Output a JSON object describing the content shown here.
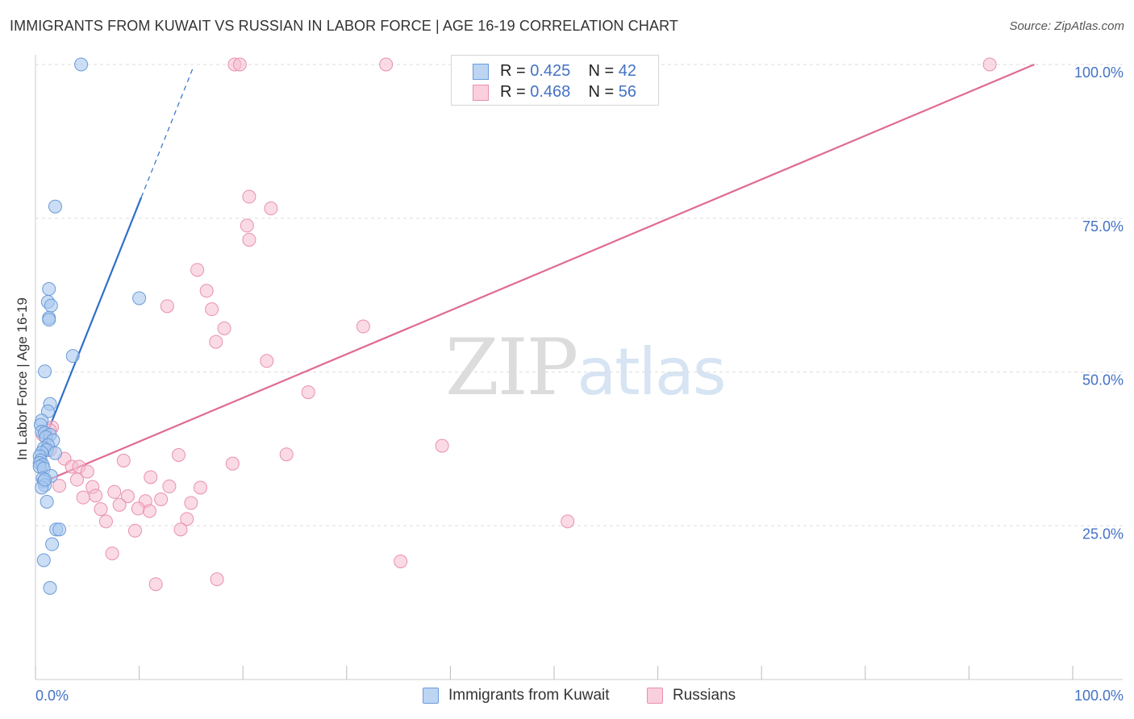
{
  "header": {
    "title": "IMMIGRANTS FROM KUWAIT VS RUSSIAN IN LABOR FORCE | AGE 16-19 CORRELATION CHART",
    "source": "Source: ZipAtlas.com"
  },
  "watermark": {
    "zip": "ZIP",
    "atlas": "atlas"
  },
  "legend": {
    "rows": [
      {
        "r_label": "R = ",
        "r_value": "0.425",
        "n_label": "N = ",
        "n_value": "42"
      },
      {
        "r_label": "R = ",
        "r_value": "0.468",
        "n_label": "N = ",
        "n_value": "56"
      }
    ]
  },
  "bottom_legend": {
    "items": [
      {
        "label": "Immigrants from Kuwait"
      },
      {
        "label": "Russians"
      }
    ]
  },
  "chart_data": {
    "type": "scatter",
    "title": "IMMIGRANTS FROM KUWAIT VS RUSSIAN IN LABOR FORCE | AGE 16-19 CORRELATION CHART",
    "xlabel": "",
    "ylabel": "In Labor Force | Age 16-19",
    "xlim": [
      0,
      100
    ],
    "ylim": [
      0,
      100
    ],
    "x_tick_labels": [
      "0.0%",
      "100.0%"
    ],
    "y_tick_labels": [
      "25.0%",
      "50.0%",
      "75.0%",
      "100.0%"
    ],
    "y_ticks": [
      25,
      50,
      75,
      100
    ],
    "grid": true,
    "legend_position": "top-center",
    "colors": {
      "kuwait_fill": "#a9c8ee",
      "kuwait_stroke": "#6a9bd8",
      "kuwait_line": "#2f6fc8",
      "russians_fill": "#f6bdd0",
      "russians_stroke": "#e98fae",
      "russians_line": "#e06a92",
      "tick_label": "#4472c4",
      "grid": "#dddddd"
    },
    "series": [
      {
        "name": "Immigrants from Kuwait",
        "points": [
          [
            4.4,
            100
          ],
          [
            1.9,
            76.9
          ],
          [
            10,
            62
          ],
          [
            1.3,
            63.5
          ],
          [
            1.2,
            61.4
          ],
          [
            1.5,
            60.8
          ],
          [
            1.3,
            58.8
          ],
          [
            1.3,
            58.5
          ],
          [
            3.6,
            52.6
          ],
          [
            0.9,
            50.1
          ],
          [
            1.4,
            44.8
          ],
          [
            1.2,
            43.6
          ],
          [
            0.6,
            42.1
          ],
          [
            0.5,
            41.4
          ],
          [
            0.6,
            40.3
          ],
          [
            0.9,
            40.1
          ],
          [
            1.4,
            39.8
          ],
          [
            1.0,
            39.4
          ],
          [
            1.7,
            38.9
          ],
          [
            1.2,
            38.1
          ],
          [
            0.8,
            37.6
          ],
          [
            1.1,
            37.3
          ],
          [
            1.9,
            36.8
          ],
          [
            0.6,
            36.9
          ],
          [
            0.4,
            36.3
          ],
          [
            0.5,
            35.6
          ],
          [
            0.4,
            35.2
          ],
          [
            0.7,
            34.9
          ],
          [
            0.4,
            34.6
          ],
          [
            0.8,
            34.3
          ],
          [
            1.5,
            33.1
          ],
          [
            0.7,
            32.7
          ],
          [
            0.8,
            32.2
          ],
          [
            0.9,
            31.6
          ],
          [
            0.6,
            31.2
          ],
          [
            1.1,
            28.9
          ],
          [
            2.0,
            24.4
          ],
          [
            2.3,
            24.4
          ],
          [
            1.6,
            22.0
          ],
          [
            0.8,
            19.4
          ],
          [
            1.4,
            14.9
          ],
          [
            0.9,
            32.5
          ]
        ],
        "trend": {
          "x1": 0.4,
          "y1": 37.0,
          "x2": 10.2,
          "y2": 78.4,
          "dashed_to_x": 15.2,
          "dashed_to_y": 99.5
        }
      },
      {
        "name": "Russians",
        "points": [
          [
            19.2,
            100
          ],
          [
            19.7,
            100
          ],
          [
            33.8,
            100
          ],
          [
            92.0,
            100
          ],
          [
            20.6,
            78.5
          ],
          [
            22.7,
            76.6
          ],
          [
            20.4,
            73.8
          ],
          [
            20.6,
            71.5
          ],
          [
            15.6,
            66.6
          ],
          [
            16.5,
            63.2
          ],
          [
            12.7,
            60.7
          ],
          [
            17.0,
            60.2
          ],
          [
            31.6,
            57.4
          ],
          [
            18.2,
            57.1
          ],
          [
            17.4,
            54.9
          ],
          [
            22.3,
            51.8
          ],
          [
            26.3,
            46.7
          ],
          [
            1.6,
            41.0
          ],
          [
            1.4,
            40.5
          ],
          [
            0.7,
            39.8
          ],
          [
            1.4,
            37.3
          ],
          [
            39.2,
            38.0
          ],
          [
            13.8,
            36.5
          ],
          [
            24.2,
            36.6
          ],
          [
            8.5,
            35.6
          ],
          [
            19.0,
            35.1
          ],
          [
            2.8,
            35.9
          ],
          [
            3.5,
            34.6
          ],
          [
            4.2,
            34.6
          ],
          [
            5.0,
            33.8
          ],
          [
            4.0,
            32.5
          ],
          [
            11.1,
            32.9
          ],
          [
            2.3,
            31.5
          ],
          [
            5.5,
            31.3
          ],
          [
            12.9,
            31.4
          ],
          [
            15.9,
            31.2
          ],
          [
            7.6,
            30.5
          ],
          [
            4.6,
            29.6
          ],
          [
            8.9,
            29.8
          ],
          [
            5.8,
            29.9
          ],
          [
            8.1,
            28.4
          ],
          [
            10.6,
            29.0
          ],
          [
            12.1,
            29.3
          ],
          [
            15.0,
            28.7
          ],
          [
            6.3,
            27.7
          ],
          [
            9.9,
            27.8
          ],
          [
            11.0,
            27.4
          ],
          [
            14.6,
            26.1
          ],
          [
            6.8,
            25.7
          ],
          [
            51.3,
            25.7
          ],
          [
            9.6,
            24.2
          ],
          [
            14.0,
            24.4
          ],
          [
            7.4,
            20.5
          ],
          [
            35.2,
            19.2
          ],
          [
            17.5,
            16.3
          ],
          [
            11.6,
            15.5
          ]
        ],
        "trend": {
          "x1": 0.3,
          "y1": 31.8,
          "x2": 96.3,
          "y2": 100
        }
      }
    ]
  }
}
